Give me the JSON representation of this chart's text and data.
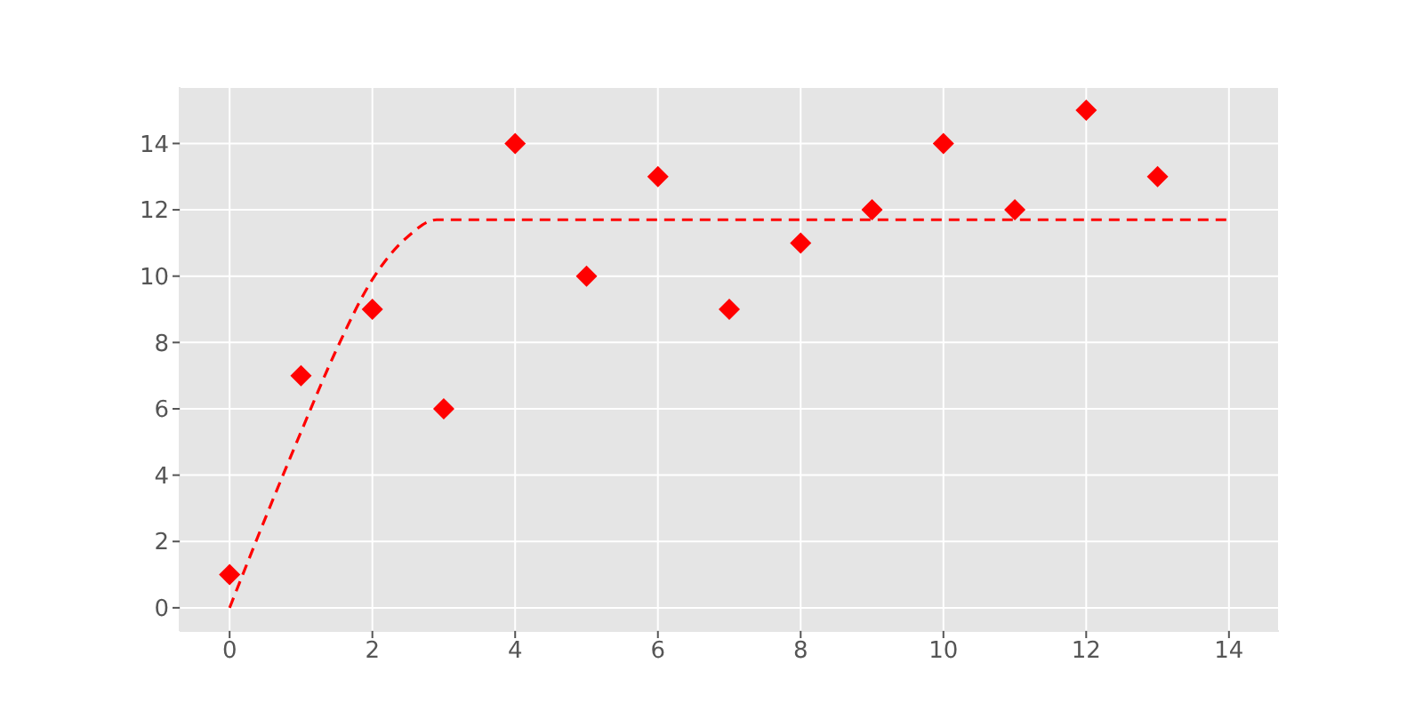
{
  "chart_data": {
    "type": "scatter",
    "x": [
      0,
      1,
      2,
      3,
      4,
      5,
      6,
      7,
      8,
      9,
      10,
      11,
      12,
      13
    ],
    "series": [
      {
        "color": "#ff0000",
        "marker": "diamond",
        "values": [
          1,
          7,
          9,
          6,
          14,
          10,
          13,
          9,
          11,
          12,
          14,
          12,
          15,
          13
        ]
      },
      {
        "type": "line",
        "color": "#ff0000",
        "line_style": "dashed",
        "marker": "none",
        "x": [
          0,
          0.5,
          1,
          1.5,
          2,
          2.5,
          2.9,
          3,
          14
        ],
        "values": [
          0,
          2.7,
          5.3,
          7.8,
          9.9,
          11.2,
          11.7,
          11.7,
          11.7
        ]
      }
    ],
    "xlim": [
      -0.7,
      14.7
    ],
    "ylim": [
      -0.7,
      15.7
    ],
    "xticks": [
      0,
      2,
      4,
      6,
      8,
      10,
      12,
      14
    ],
    "yticks": [
      0,
      2,
      4,
      6,
      8,
      10,
      12,
      14
    ],
    "grid": true
  }
}
